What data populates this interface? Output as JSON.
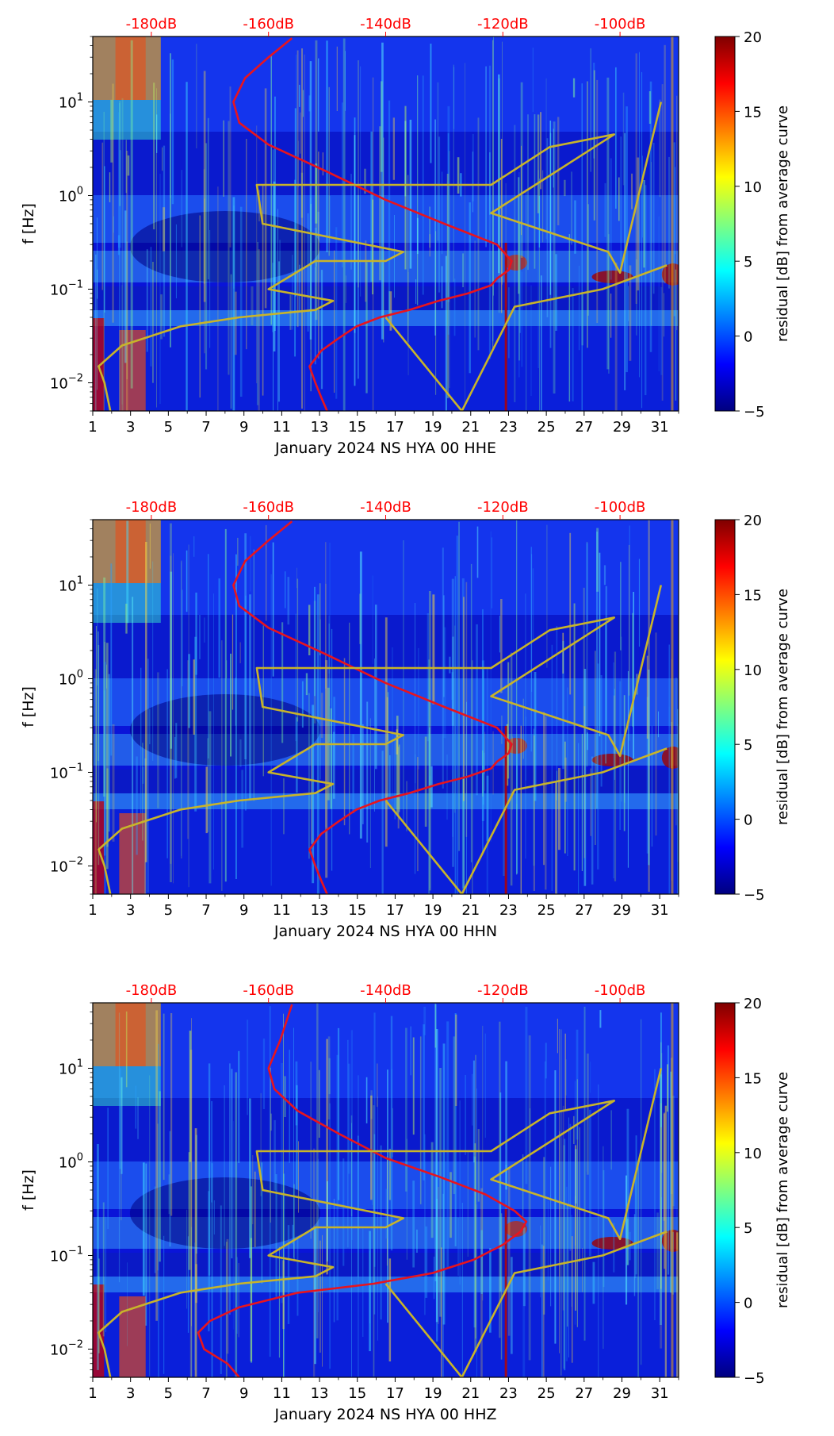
{
  "colormap": {
    "name": "jet",
    "stops": [
      "#00007f",
      "#0000ff",
      "#007fff",
      "#00ffff",
      "#7fff7f",
      "#ffff00",
      "#ff7f00",
      "#ff0000",
      "#7f0000"
    ]
  },
  "colors": {
    "top_axis_text": "#ff0000",
    "psd_curve": "#e8141e",
    "noise_model": "#c8b42a"
  },
  "chart_data": [
    {
      "type": "heatmap",
      "xlabel": "January 2024 NS HYA 00 HHE",
      "ylabel": "f [Hz]",
      "x_range": [
        1,
        32
      ],
      "x_ticks": [
        "1",
        "3",
        "5",
        "7",
        "9",
        "11",
        "13",
        "15",
        "17",
        "19",
        "21",
        "23",
        "25",
        "27",
        "29",
        "31"
      ],
      "y_scale": "log",
      "y_range": [
        0.005,
        50
      ],
      "y_ticks": [
        {
          "value": 0.01,
          "base": "10",
          "exp": "−2"
        },
        {
          "value": 0.1,
          "base": "10",
          "exp": "−1"
        },
        {
          "value": 1,
          "base": "10",
          "exp": "0"
        },
        {
          "value": 10,
          "base": "10",
          "exp": "1"
        }
      ],
      "top_axis": {
        "range": [
          -190,
          -90
        ],
        "ticks": [
          {
            "value": -180,
            "label": "-180dB"
          },
          {
            "value": -160,
            "label": "-160dB"
          },
          {
            "value": -140,
            "label": "-140dB"
          },
          {
            "value": -120,
            "label": "-120dB"
          },
          {
            "value": -100,
            "label": "-100dB"
          }
        ]
      },
      "colorbar": {
        "label": "residual [dB] from average curve",
        "range": [
          -5,
          20
        ],
        "ticks": [
          "20",
          "15",
          "10",
          "5",
          "0",
          "−5"
        ]
      },
      "curves": [
        {
          "type": "line",
          "color": "#e8141e",
          "x": [
            -150,
            -151,
            -152,
            -153,
            -151,
            -148,
            -145,
            -141,
            -136,
            -131,
            -126,
            -122,
            -121,
            -119,
            -118.5,
            -121,
            -130,
            -140,
            -150,
            -160,
            -165,
            -166,
            -164,
            -160,
            -156
          ],
          "y": [
            0.005,
            0.007,
            0.01,
            0.015,
            0.022,
            0.03,
            0.04,
            0.05,
            0.06,
            0.075,
            0.09,
            0.11,
            0.13,
            0.16,
            0.2,
            0.3,
            0.5,
            0.9,
            1.8,
            3.5,
            6,
            10,
            18,
            30,
            48
          ]
        },
        {
          "type": "line",
          "color": "#c8b42a",
          "x": [
            -187,
            -188,
            -189,
            -185,
            -175,
            -165,
            -152,
            -149,
            -160,
            -152,
            -140,
            -137,
            -161,
            -162,
            -122,
            -112,
            -101,
            -122,
            -102,
            -100,
            -93
          ],
          "y": [
            0.005,
            0.01,
            0.015,
            0.025,
            0.04,
            0.05,
            0.06,
            0.075,
            0.1,
            0.2,
            0.2,
            0.25,
            0.5,
            1.3,
            1.3,
            3.3,
            4.5,
            0.65,
            0.25,
            0.15,
            10
          ]
        },
        {
          "type": "line",
          "color": "#c8b42a",
          "x": [
            -140,
            -127,
            -118,
            -103,
            -92
          ],
          "y": [
            0.05,
            0.005,
            0.065,
            0.1,
            0.18
          ]
        }
      ]
    },
    {
      "type": "heatmap",
      "xlabel": "January 2024 NS HYA 00 HHN",
      "ylabel": "f [Hz]",
      "x_range": [
        1,
        32
      ],
      "x_ticks": [
        "1",
        "3",
        "5",
        "7",
        "9",
        "11",
        "13",
        "15",
        "17",
        "19",
        "21",
        "23",
        "25",
        "27",
        "29",
        "31"
      ],
      "y_scale": "log",
      "y_range": [
        0.005,
        50
      ],
      "y_ticks": [
        {
          "value": 0.01,
          "base": "10",
          "exp": "−2"
        },
        {
          "value": 0.1,
          "base": "10",
          "exp": "−1"
        },
        {
          "value": 1,
          "base": "10",
          "exp": "0"
        },
        {
          "value": 10,
          "base": "10",
          "exp": "1"
        }
      ],
      "top_axis": {
        "range": [
          -190,
          -90
        ],
        "ticks": [
          {
            "value": -180,
            "label": "-180dB"
          },
          {
            "value": -160,
            "label": "-160dB"
          },
          {
            "value": -140,
            "label": "-140dB"
          },
          {
            "value": -120,
            "label": "-120dB"
          },
          {
            "value": -100,
            "label": "-100dB"
          }
        ]
      },
      "colorbar": {
        "label": "residual [dB] from average curve",
        "range": [
          -5,
          20
        ],
        "ticks": [
          "20",
          "15",
          "10",
          "5",
          "0",
          "−5"
        ]
      },
      "curves": [
        {
          "type": "line",
          "color": "#e8141e",
          "x": [
            -150,
            -151,
            -152,
            -153,
            -151,
            -148,
            -145,
            -141,
            -136,
            -131,
            -126,
            -122,
            -121,
            -119,
            -118.5,
            -121,
            -130,
            -140,
            -150,
            -160,
            -165,
            -166,
            -164,
            -160,
            -156
          ],
          "y": [
            0.005,
            0.007,
            0.01,
            0.015,
            0.022,
            0.03,
            0.04,
            0.05,
            0.06,
            0.075,
            0.09,
            0.11,
            0.13,
            0.16,
            0.2,
            0.3,
            0.5,
            0.9,
            1.8,
            3.5,
            6,
            10,
            18,
            30,
            48
          ]
        },
        {
          "type": "line",
          "color": "#c8b42a",
          "x": [
            -187,
            -188,
            -189,
            -185,
            -175,
            -165,
            -152,
            -149,
            -160,
            -152,
            -140,
            -137,
            -161,
            -162,
            -122,
            -112,
            -101,
            -122,
            -102,
            -100,
            -93
          ],
          "y": [
            0.005,
            0.01,
            0.015,
            0.025,
            0.04,
            0.05,
            0.06,
            0.075,
            0.1,
            0.2,
            0.2,
            0.25,
            0.5,
            1.3,
            1.3,
            3.3,
            4.5,
            0.65,
            0.25,
            0.15,
            10
          ]
        },
        {
          "type": "line",
          "color": "#c8b42a",
          "x": [
            -140,
            -127,
            -118,
            -103,
            -92
          ],
          "y": [
            0.05,
            0.005,
            0.065,
            0.1,
            0.18
          ]
        }
      ]
    },
    {
      "type": "heatmap",
      "xlabel": "January 2024 NS HYA 00 HHZ",
      "ylabel": "f [Hz]",
      "x_range": [
        1,
        32
      ],
      "x_ticks": [
        "1",
        "3",
        "5",
        "7",
        "9",
        "11",
        "13",
        "15",
        "17",
        "19",
        "21",
        "23",
        "25",
        "27",
        "29",
        "31"
      ],
      "y_scale": "log",
      "y_range": [
        0.005,
        50
      ],
      "y_ticks": [
        {
          "value": 0.01,
          "base": "10",
          "exp": "−2"
        },
        {
          "value": 0.1,
          "base": "10",
          "exp": "−1"
        },
        {
          "value": 1,
          "base": "10",
          "exp": "0"
        },
        {
          "value": 10,
          "base": "10",
          "exp": "1"
        }
      ],
      "top_axis": {
        "range": [
          -190,
          -90
        ],
        "ticks": [
          {
            "value": -180,
            "label": "-180dB"
          },
          {
            "value": -160,
            "label": "-160dB"
          },
          {
            "value": -140,
            "label": "-140dB"
          },
          {
            "value": -120,
            "label": "-120dB"
          },
          {
            "value": -100,
            "label": "-100dB"
          }
        ]
      },
      "colorbar": {
        "label": "residual [dB] from average curve",
        "range": [
          -5,
          20
        ],
        "ticks": [
          "20",
          "15",
          "10",
          "5",
          "0",
          "−5"
        ]
      },
      "curves": [
        {
          "type": "line",
          "color": "#e8141e",
          "x": [
            -165,
            -167,
            -171,
            -172,
            -170,
            -165,
            -155,
            -142,
            -132,
            -125,
            -120,
            -117,
            -116,
            -118,
            -123,
            -131,
            -140,
            -148,
            -155,
            -159,
            -160,
            -158,
            -156
          ],
          "y": [
            0.005,
            0.007,
            0.01,
            0.015,
            0.02,
            0.028,
            0.04,
            0.05,
            0.065,
            0.09,
            0.13,
            0.18,
            0.23,
            0.3,
            0.45,
            0.7,
            1.1,
            2,
            3.5,
            6,
            10,
            20,
            48
          ]
        },
        {
          "type": "line",
          "color": "#c8b42a",
          "x": [
            -187,
            -188,
            -189,
            -185,
            -175,
            -165,
            -152,
            -149,
            -160,
            -152,
            -140,
            -137,
            -161,
            -162,
            -122,
            -112,
            -101,
            -122,
            -102,
            -100,
            -93
          ],
          "y": [
            0.005,
            0.01,
            0.015,
            0.025,
            0.04,
            0.05,
            0.06,
            0.075,
            0.1,
            0.2,
            0.2,
            0.25,
            0.5,
            1.3,
            1.3,
            3.3,
            4.5,
            0.65,
            0.25,
            0.15,
            10
          ]
        },
        {
          "type": "line",
          "color": "#c8b42a",
          "x": [
            -140,
            -127,
            -118,
            -103,
            -92
          ],
          "y": [
            0.05,
            0.005,
            0.065,
            0.1,
            0.18
          ]
        }
      ]
    }
  ]
}
